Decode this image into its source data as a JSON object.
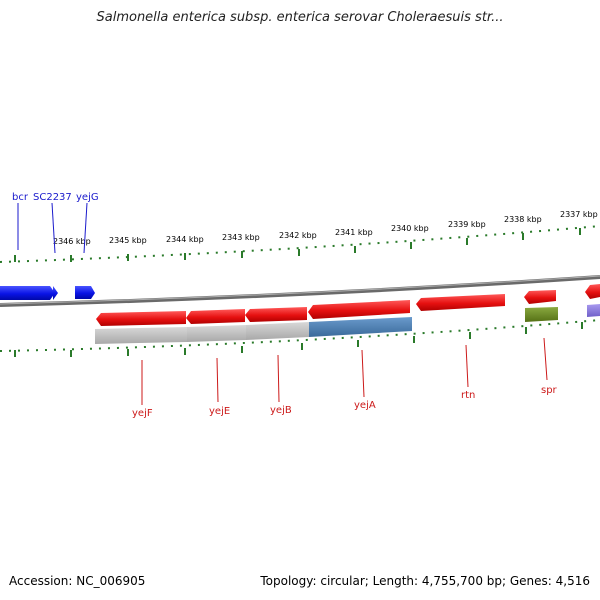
{
  "title": "Salmonella enterica subsp. enterica serovar Choleraesuis str...",
  "accession_label": "Accession: NC_006905",
  "stats_label": "Topology: circular; Length: 4,755,700 bp; Genes: 4,516",
  "scale_labels": [
    "2346 kbp",
    "2345 kbp",
    "2344 kbp",
    "2343 kbp",
    "2342 kbp",
    "2341 kbp",
    "2340 kbp",
    "2339 kbp",
    "2338 kbp",
    "2337 kbp"
  ],
  "top_genes": [
    "bcr",
    "SC2237",
    "yejG"
  ],
  "bottom_genes": [
    "yejF",
    "yejE",
    "yejB",
    "yejA",
    "rtn",
    "spr"
  ],
  "colors": {
    "forward_gene": "#0a14e6",
    "reverse_gene": "#e61010",
    "top_label": "#1a1acc",
    "bottom_label": "#cc1a1a",
    "tick": "#2a7a2a",
    "backbone": "#808080",
    "cog_gray": "#b8b8b8",
    "cog_blue": "#4a7fb0",
    "cog_green": "#6a8a20",
    "cog_purple": "#8a7ad8"
  }
}
